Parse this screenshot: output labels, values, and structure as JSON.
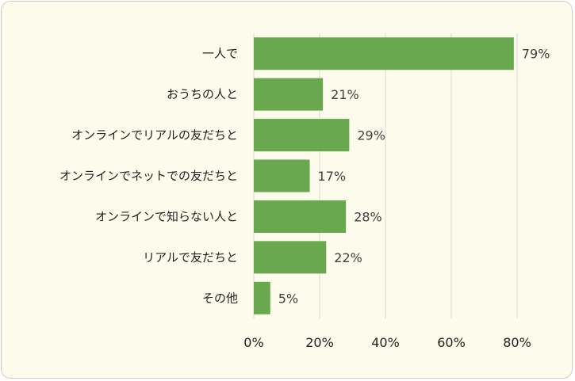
{
  "chart_data": {
    "type": "bar",
    "orientation": "horizontal",
    "title": "",
    "xlabel": "",
    "ylabel": "",
    "categories": [
      "一人で",
      "おうちの人と",
      "オンラインでリアルの友だちと",
      "オンラインでネットでの友だちと",
      "オンラインで知らない人と",
      "リアルで友だちと",
      "その他"
    ],
    "values": [
      79,
      21,
      29,
      17,
      28,
      22,
      5
    ],
    "value_labels": [
      "79%",
      "21%",
      "29%",
      "17%",
      "28%",
      "22%",
      "5%"
    ],
    "xlim": [
      0,
      80
    ],
    "xticks": [
      0,
      20,
      40,
      60,
      80
    ],
    "xtick_labels": [
      "0%",
      "20%",
      "40%",
      "60%",
      "80%"
    ],
    "grid": true,
    "legend": "none",
    "colors": {
      "bar": "#6aa84f",
      "background": "#fdfbeb",
      "gridline": "#d9d9d9"
    }
  }
}
